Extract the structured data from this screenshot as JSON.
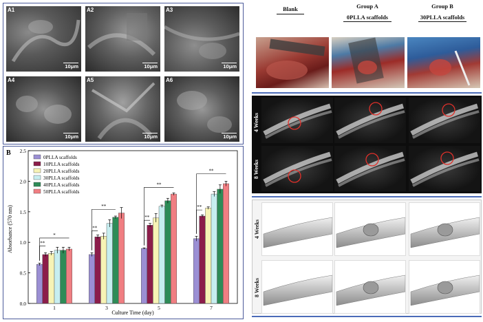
{
  "sem": {
    "tiles": [
      {
        "label": "A1",
        "scale": "10μm"
      },
      {
        "label": "A2",
        "scale": "10μm"
      },
      {
        "label": "A3",
        "scale": "10μm"
      },
      {
        "label": "A4",
        "scale": "10μm"
      },
      {
        "label": "A5",
        "scale": "10μm"
      },
      {
        "label": "A6",
        "scale": "10μm"
      }
    ]
  },
  "chart_panel_label": "B",
  "chart_data": {
    "type": "bar",
    "categories": [
      "1",
      "3",
      "5",
      "7"
    ],
    "xlabel": "Culture Time (day)",
    "ylabel": "Absorbance (570 nm)",
    "ylim": [
      0.0,
      2.5
    ],
    "yticks": [
      "0.0",
      "0.5",
      "1.0",
      "1.5",
      "2.0",
      "2.5"
    ],
    "legend_position": "top-left",
    "series": [
      {
        "name": "0PLLA scaffolds",
        "color": "#9b8fd4",
        "values": [
          0.64,
          0.8,
          0.9,
          1.06
        ],
        "errors": [
          0.02,
          0.03,
          0.01,
          0.04
        ]
      },
      {
        "name": "10PLLA scaffolds",
        "color": "#8b1d4a",
        "values": [
          0.8,
          1.09,
          1.28,
          1.43
        ],
        "errors": [
          0.03,
          0.03,
          0.03,
          0.02
        ]
      },
      {
        "name": "20PLLA scaffolds",
        "color": "#f7f3b5",
        "values": [
          0.82,
          1.1,
          1.4,
          1.56
        ],
        "errors": [
          0.03,
          0.05,
          0.07,
          0.02
        ]
      },
      {
        "name": "30PLLA scaffolds",
        "color": "#c7eef0",
        "values": [
          0.87,
          1.31,
          1.59,
          1.79
        ],
        "errors": [
          0.05,
          0.06,
          0.02,
          0.04
        ]
      },
      {
        "name": "40PLLA scaffolds",
        "color": "#2e8b57",
        "values": [
          0.87,
          1.41,
          1.68,
          1.87
        ],
        "errors": [
          0.05,
          0.02,
          0.04,
          0.07
        ]
      },
      {
        "name": "50PLLA scaffolds",
        "color": "#f07e82",
        "values": [
          0.89,
          1.48,
          1.79,
          1.96
        ],
        "errors": [
          0.03,
          0.09,
          0.02,
          0.04
        ]
      }
    ],
    "annotations": [
      "**",
      "*",
      "**",
      "**",
      "**",
      "**",
      "**",
      "**"
    ]
  },
  "xray": {
    "columns": [
      {
        "title": "Blank",
        "subtitle": ""
      },
      {
        "title": "Group A",
        "subtitle": "0PLLA scaffolds"
      },
      {
        "title": "Group B",
        "subtitle": "30PLLA scaffolds"
      }
    ],
    "rows": [
      "4 Weeks",
      "8 Weeks"
    ],
    "ct_rows": [
      "4 Weeks",
      "8 Weeks"
    ]
  }
}
